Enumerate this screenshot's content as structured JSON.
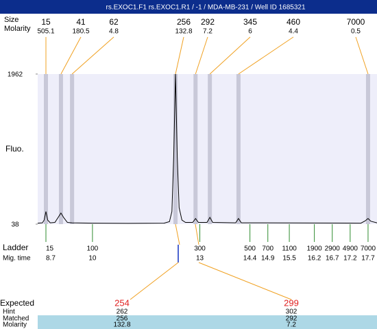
{
  "chart_data": {
    "type": "electropherogram",
    "title": "rs.EXOC1.F1  rs.EXOC1.R1 / -1 / MDA-MB-231 / Well ID 1685321",
    "peak_labels": {
      "size": "Size",
      "molarity": "Molarity"
    },
    "y_label": "Fluo.",
    "ylim": [
      38,
      1962
    ],
    "yticks": [
      38,
      1962
    ],
    "xlim": [
      8.47,
      17.95
    ],
    "peaks": {
      "sizes": [
        15,
        41,
        62,
        256,
        292,
        345,
        460,
        7000
      ],
      "molarity": [
        505.1,
        180.5,
        4.8,
        132.8,
        7.2,
        6,
        4.4,
        0.5
      ],
      "times": [
        8.7,
        9.12,
        9.43,
        12.32,
        12.88,
        13.28,
        14.08,
        17.7
      ]
    },
    "trace": {
      "x": [
        8.47,
        8.6,
        8.65,
        8.7,
        8.75,
        8.82,
        8.95,
        9.05,
        9.12,
        9.2,
        9.3,
        9.43,
        10,
        11,
        12.0,
        12.15,
        12.22,
        12.27,
        12.32,
        12.37,
        12.42,
        12.5,
        12.6,
        12.8,
        12.88,
        12.96,
        13.2,
        13.28,
        13.36,
        14.0,
        14.08,
        14.16,
        17.5,
        17.62,
        17.7,
        17.78,
        17.95
      ],
      "y": [
        50,
        55,
        90,
        200,
        90,
        55,
        60,
        130,
        180,
        120,
        60,
        55,
        50,
        48,
        50,
        70,
        200,
        900,
        1962,
        900,
        250,
        90,
        60,
        60,
        110,
        60,
        60,
        125,
        60,
        55,
        110,
        55,
        50,
        80,
        110,
        75,
        55
      ]
    },
    "ladder": {
      "label": "Ladder",
      "time_label": "Mig. time",
      "sizes": [
        15,
        100,
        300,
        500,
        700,
        1100,
        1900,
        2900,
        4900,
        7000
      ],
      "times": [
        8.7,
        10,
        13,
        14.4,
        14.9,
        15.5,
        16.2,
        16.7,
        17.2,
        17.7
      ]
    },
    "table": {
      "row_labels": [
        "Expected",
        "Hint",
        "Matched",
        "Molarity"
      ],
      "expected": [
        254,
        299
      ],
      "hint": [
        262,
        302
      ],
      "matched": [
        256,
        292
      ],
      "molarity": [
        132.8,
        7.2
      ]
    }
  }
}
